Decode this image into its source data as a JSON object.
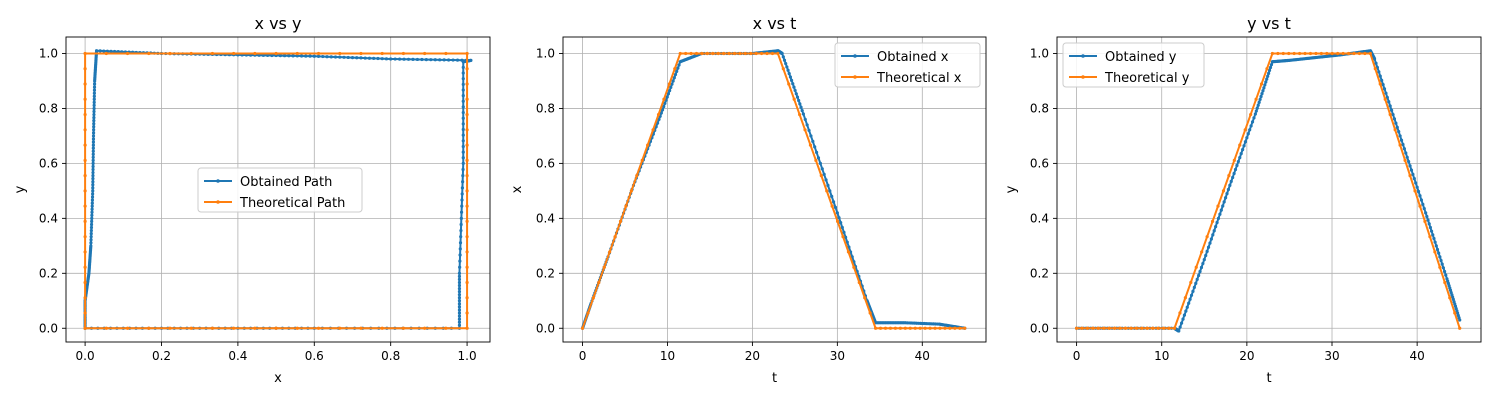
{
  "chart_data": [
    {
      "type": "line",
      "title": "x vs y",
      "xlabel": "x",
      "ylabel": "y",
      "xlim": [
        -0.05,
        1.06
      ],
      "ylim": [
        -0.05,
        1.06
      ],
      "xticks": [
        0.0,
        0.2,
        0.4,
        0.6,
        0.8,
        1.0
      ],
      "xtick_labels": [
        "0.0",
        "0.2",
        "0.4",
        "0.6",
        "0.8",
        "1.0"
      ],
      "yticks": [
        0.0,
        0.2,
        0.4,
        0.6,
        0.8,
        1.0
      ],
      "ytick_labels": [
        "0.0",
        "0.2",
        "0.4",
        "0.6",
        "0.8",
        "1.0"
      ],
      "grid": true,
      "legend_position": "center",
      "series": [
        {
          "name": "Obtained Path",
          "color": "#1f77b4",
          "x": [
            0.0,
            0.0,
            0.01,
            0.015,
            0.02,
            0.022,
            0.025,
            0.03,
            0.2,
            0.4,
            0.6,
            0.8,
            1.01,
            0.99,
            0.99,
            0.98,
            0.98,
            0.6,
            0.3,
            0.0
          ],
          "y": [
            0.0,
            0.1,
            0.2,
            0.3,
            0.5,
            0.7,
            0.9,
            1.01,
            1.0,
            0.995,
            0.99,
            0.98,
            0.975,
            0.97,
            0.6,
            0.2,
            0.0,
            0.0,
            0.0,
            0.0
          ]
        },
        {
          "name": "Theoretical Path",
          "color": "#ff7f0e",
          "x": [
            0.0,
            0.0,
            1.0,
            1.0,
            0.0
          ],
          "y": [
            0.0,
            1.0,
            1.0,
            0.0,
            0.0
          ]
        }
      ]
    },
    {
      "type": "line",
      "title": "x vs t",
      "xlabel": "t",
      "ylabel": "x",
      "xlim": [
        -2.3,
        47.5
      ],
      "ylim": [
        -0.05,
        1.06
      ],
      "xticks": [
        0,
        10,
        20,
        30,
        40
      ],
      "xtick_labels": [
        "0",
        "10",
        "20",
        "30",
        "40"
      ],
      "yticks": [
        0.0,
        0.2,
        0.4,
        0.6,
        0.8,
        1.0
      ],
      "ytick_labels": [
        "0.0",
        "0.2",
        "0.4",
        "0.6",
        "0.8",
        "1.0"
      ],
      "grid": true,
      "legend_position": "upper right",
      "series": [
        {
          "name": "Obtained x",
          "color": "#1f77b4",
          "x": [
            0.0,
            1.0,
            3.0,
            6.0,
            9.0,
            11.5,
            14.0,
            20.0,
            23.0,
            23.5,
            26.0,
            30.0,
            33.5,
            34.5,
            38.0,
            42.0,
            45.0
          ],
          "y": [
            0.0,
            0.09,
            0.26,
            0.52,
            0.76,
            0.97,
            1.0,
            1.0,
            1.01,
            1.0,
            0.78,
            0.42,
            0.1,
            0.02,
            0.02,
            0.015,
            0.0
          ]
        },
        {
          "name": "Theoretical x",
          "color": "#ff7f0e",
          "x": [
            0.0,
            11.5,
            23.0,
            34.5,
            45.0
          ],
          "y": [
            0.0,
            1.0,
            1.0,
            0.0,
            0.0
          ]
        }
      ]
    },
    {
      "type": "line",
      "title": "y vs t",
      "xlabel": "t",
      "ylabel": "y",
      "xlim": [
        -2.3,
        47.5
      ],
      "ylim": [
        -0.05,
        1.06
      ],
      "xticks": [
        0,
        10,
        20,
        30,
        40
      ],
      "xtick_labels": [
        "0",
        "10",
        "20",
        "30",
        "40"
      ],
      "yticks": [
        0.0,
        0.2,
        0.4,
        0.6,
        0.8,
        1.0
      ],
      "ytick_labels": [
        "0.0",
        "0.2",
        "0.4",
        "0.6",
        "0.8",
        "1.0"
      ],
      "grid": true,
      "legend_position": "upper left",
      "series": [
        {
          "name": "Obtained y",
          "color": "#1f77b4",
          "x": [
            0.0,
            5.0,
            11.5,
            12.0,
            15.0,
            18.0,
            21.0,
            23.0,
            25.0,
            28.0,
            31.0,
            34.5,
            35.0,
            38.0,
            41.0,
            43.5,
            45.0
          ],
          "y": [
            0.0,
            0.0,
            0.0,
            -0.01,
            0.25,
            0.52,
            0.78,
            0.97,
            0.975,
            0.985,
            0.995,
            1.01,
            0.98,
            0.7,
            0.42,
            0.18,
            0.03
          ]
        },
        {
          "name": "Theoretical y",
          "color": "#ff7f0e",
          "x": [
            0.0,
            11.5,
            23.0,
            34.5,
            45.0
          ],
          "y": [
            0.0,
            0.0,
            1.0,
            1.0,
            0.0
          ]
        }
      ]
    }
  ]
}
